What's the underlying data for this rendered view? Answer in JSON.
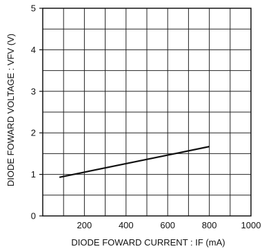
{
  "chart_data": {
    "type": "line",
    "xlabel": "DIODE FOWARD CURRENT : IF (mA)",
    "ylabel": "DIODE FOWARD VOLTAGE : VFV (V)",
    "xlim": [
      0,
      1000
    ],
    "ylim": [
      0,
      5
    ],
    "x_ticks": [
      200,
      400,
      600,
      800,
      1000
    ],
    "y_ticks": [
      0,
      1,
      2,
      3,
      4,
      5
    ],
    "x_minor_step": 100,
    "y_minor_step": 0.5,
    "grid": true,
    "series": [
      {
        "x": [
          80,
          800
        ],
        "y": [
          0.93,
          1.67
        ]
      }
    ]
  }
}
